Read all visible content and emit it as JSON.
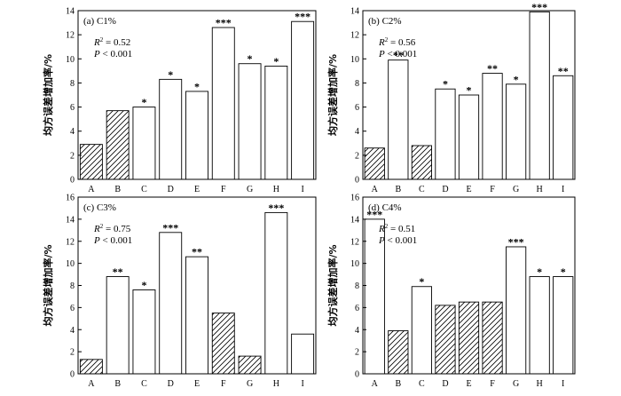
{
  "chart_data": [
    {
      "type": "bar",
      "title": "(a) C1%",
      "ylabel": "均方误差增加率/%",
      "categories": [
        "A",
        "B",
        "C",
        "D",
        "E",
        "F",
        "G",
        "H",
        "I"
      ],
      "values": [
        2.9,
        5.7,
        6.0,
        8.3,
        7.3,
        12.6,
        9.6,
        9.4,
        13.1
      ],
      "significance": [
        "",
        "",
        "*",
        "*",
        "*",
        "***",
        "*",
        "*",
        "***"
      ],
      "hatched": [
        true,
        true,
        false,
        false,
        false,
        false,
        false,
        false,
        false
      ],
      "stats": {
        "r2_label": "R",
        "r2_value": "= 0.52",
        "p_label": "P",
        "p_value": "< 0.001"
      },
      "ylim": [
        0,
        14
      ],
      "yticks": [
        0,
        2,
        4,
        6,
        8,
        10,
        12,
        14
      ]
    },
    {
      "type": "bar",
      "title": "(b) C2%",
      "ylabel": "均方误差增加率/%",
      "categories": [
        "A",
        "B",
        "C",
        "D",
        "E",
        "F",
        "G",
        "H",
        "I"
      ],
      "values": [
        2.6,
        9.9,
        2.8,
        7.5,
        7.0,
        8.8,
        7.9,
        13.9,
        8.6
      ],
      "significance": [
        "",
        "**",
        "",
        "*",
        "*",
        "**",
        "*",
        "***",
        "**"
      ],
      "hatched": [
        true,
        false,
        true,
        false,
        false,
        false,
        false,
        false,
        false
      ],
      "stats": {
        "r2_label": "R",
        "r2_value": "= 0.56",
        "p_label": "P",
        "p_value": "< 0.001"
      },
      "ylim": [
        0,
        14
      ],
      "yticks": [
        0,
        2,
        4,
        6,
        8,
        10,
        12,
        14
      ]
    },
    {
      "type": "bar",
      "title": "(c) C3%",
      "ylabel": "均方误差增加率/%",
      "categories": [
        "A",
        "B",
        "C",
        "D",
        "E",
        "F",
        "G",
        "H",
        "I"
      ],
      "values": [
        1.3,
        8.8,
        7.6,
        12.8,
        10.6,
        5.5,
        1.6,
        14.6,
        3.6
      ],
      "significance": [
        "",
        "**",
        "*",
        "***",
        "**",
        "",
        "",
        "***",
        ""
      ],
      "hatched": [
        true,
        false,
        false,
        false,
        false,
        true,
        true,
        false,
        false
      ],
      "stats": {
        "r2_label": "R",
        "r2_value": "= 0.75",
        "p_label": "P",
        "p_value": "< 0.001"
      },
      "ylim": [
        0,
        16
      ],
      "yticks": [
        0,
        2,
        4,
        6,
        8,
        10,
        12,
        14,
        16
      ]
    },
    {
      "type": "bar",
      "title": "(d) C4%",
      "ylabel": "均方误差增加率/%",
      "categories": [
        "A",
        "B",
        "C",
        "D",
        "E",
        "F",
        "G",
        "H",
        "I"
      ],
      "values": [
        14.0,
        3.9,
        7.9,
        6.2,
        6.5,
        6.5,
        11.5,
        8.8,
        8.8
      ],
      "significance": [
        "***",
        "",
        "*",
        "",
        "",
        "",
        "***",
        "*",
        "*"
      ],
      "hatched": [
        false,
        true,
        false,
        true,
        true,
        true,
        false,
        false,
        false
      ],
      "stats": {
        "r2_label": "R",
        "r2_value": "= 0.51",
        "p_label": "P",
        "p_value": "< 0.001"
      },
      "ylim": [
        0,
        16
      ],
      "yticks": [
        0,
        2,
        4,
        6,
        8,
        10,
        12,
        14,
        16
      ]
    }
  ]
}
